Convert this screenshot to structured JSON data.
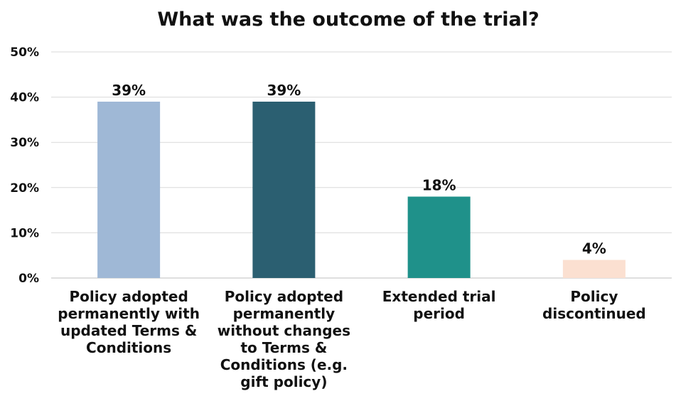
{
  "chart_data": {
    "type": "bar",
    "title": "What was the outcome of the trial?",
    "categories": [
      "Policy adopted permanently with updated Terms & Conditions",
      "Policy adopted permanently without changes to Terms & Conditions (e.g. gift policy)",
      "Extended trial period",
      "Policy discontinued"
    ],
    "category_lines": [
      [
        "Policy adopted",
        "permanently with",
        "updated Terms &",
        "Conditions"
      ],
      [
        "Policy adopted",
        "permanently",
        "without changes",
        "to Terms &",
        "Conditions (e.g.",
        "gift policy)"
      ],
      [
        "Extended trial",
        "period"
      ],
      [
        "Policy",
        "discontinued"
      ]
    ],
    "values": [
      39,
      39,
      18,
      4
    ],
    "data_labels": [
      "39%",
      "39%",
      "18%",
      "4%"
    ],
    "colors": [
      "#9fb8d6",
      "#2b5f71",
      "#1f918a",
      "#fbe0d1"
    ],
    "y_ticks": [
      "0%",
      "10%",
      "20%",
      "30%",
      "40%",
      "50%"
    ],
    "ylim": [
      0,
      50
    ],
    "xlabel": "",
    "ylabel": "",
    "grid": true,
    "legend": false
  }
}
